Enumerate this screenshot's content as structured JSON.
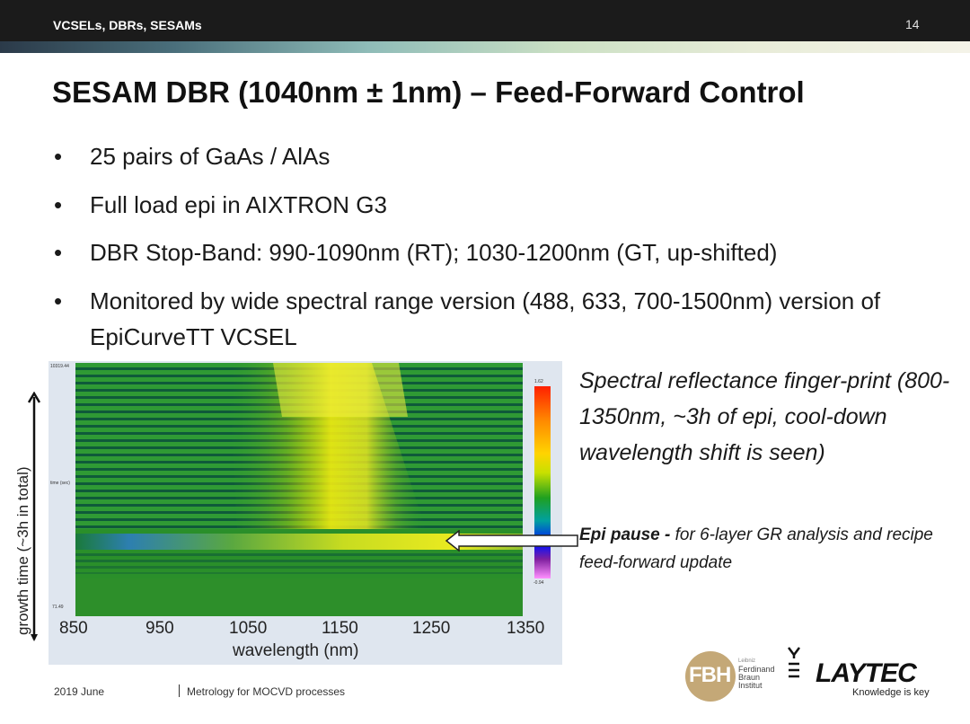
{
  "header": {
    "section": "VCSELs, DBRs, SESAMs",
    "page_number": "14"
  },
  "slide": {
    "title": "SESAM DBR (1040nm ± 1nm) – Feed-Forward Control",
    "bullets": [
      "25 pairs  of GaAs / AlAs",
      "Full load epi in AIXTRON G3",
      "DBR Stop-Band: 990-1090nm (RT); 1030-1200nm (GT, up-shifted)",
      "Monitored by wide spectral range version (488, 633, 700-1500nm) version of EpiCurveTT VCSEL"
    ]
  },
  "figure": {
    "top_time": "10319.44",
    "bottom_time": "71.49",
    "time_label": "time (sec)",
    "colorbar_max": "1.62",
    "colorbar_min": "-0.94",
    "x_ticks": [
      "850",
      "950",
      "1050",
      "1150",
      "1250",
      "1350"
    ],
    "x_label": "wavelength (nm)",
    "y_label": "growth time (~3h in total)"
  },
  "annotations": {
    "caption": "Spectral reflectance finger-print (800-1350nm, ~3h of epi, cool-down wavelength shift is seen)",
    "pause_bold": "Epi pause -",
    "pause_text": "  for 6-layer GR analysis and recipe feed-forward update"
  },
  "footer": {
    "date": "2019 June",
    "topic": "Metrology for MOCVD processes"
  },
  "logos": {
    "fbh_letters": "FBH",
    "fbh_small": "Leibniz",
    "fbh_name": [
      "Ferdinand",
      "Braun",
      "Institut"
    ],
    "laytec": "LAYTEC",
    "laytec_tagline": "Knowledge is key"
  }
}
